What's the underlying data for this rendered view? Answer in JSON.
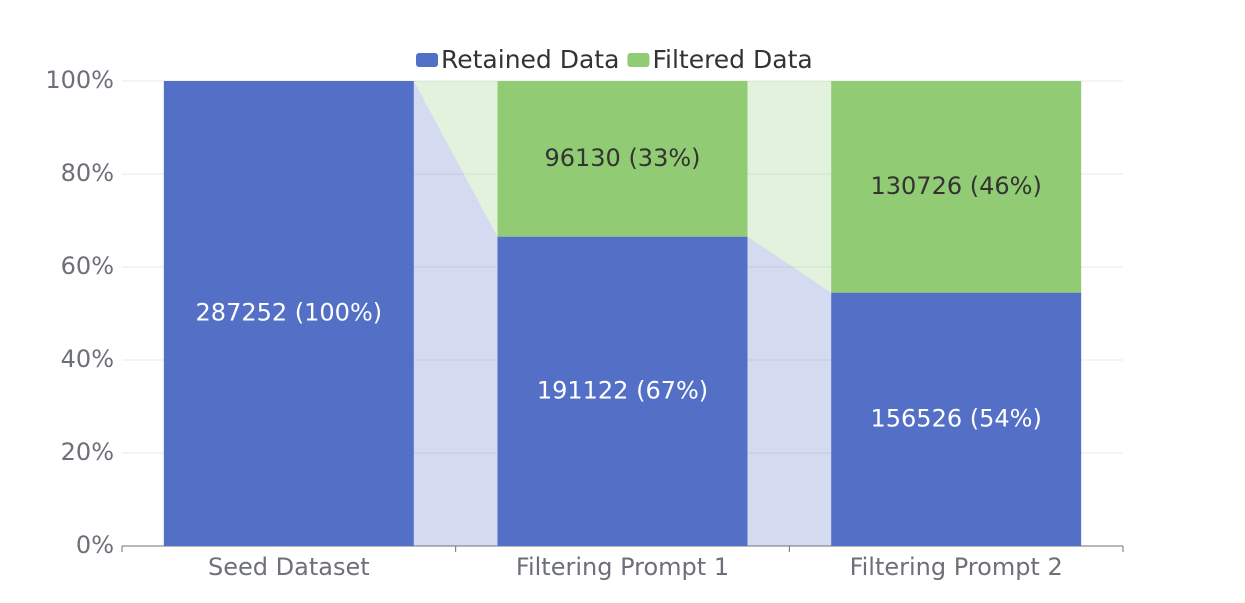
{
  "chart_data": {
    "type": "bar",
    "stacked": true,
    "categories": [
      "Seed Dataset",
      "Filtering Prompt 1",
      "Filtering Prompt 2"
    ],
    "series": [
      {
        "name": "Retained Data",
        "color": "#5470c6",
        "values": [
          100,
          66.53,
          54.49
        ],
        "value_labels": [
          "287252 (100%)",
          "191122 (67%)",
          "156526 (54%)"
        ]
      },
      {
        "name": "Filtered Data",
        "color": "#91cc75",
        "values": [
          0,
          33.47,
          45.51
        ],
        "value_labels": [
          null,
          "96130 (33%)",
          "130726 (46%)"
        ]
      }
    ],
    "ylim": [
      0,
      100
    ],
    "yticks": [
      {
        "value": 0,
        "label": "0%"
      },
      {
        "value": 20,
        "label": "20%"
      },
      {
        "value": 40,
        "label": "40%"
      },
      {
        "value": 60,
        "label": "60%"
      },
      {
        "value": 80,
        "label": "80%"
      },
      {
        "value": 100,
        "label": "100%"
      }
    ],
    "grid": true,
    "legend": "top"
  }
}
